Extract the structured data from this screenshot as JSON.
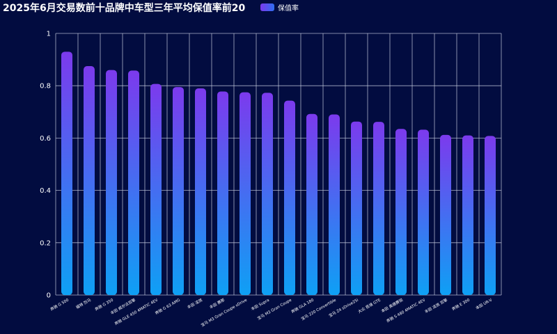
{
  "chart_data": {
    "type": "bar",
    "title": "2025年6月交易数前十品牌中车型三年平均保值率前20",
    "legend": {
      "label": "保值率",
      "position": "top-center"
    },
    "categories": [
      "奔驰 G 500",
      "福特 烈马",
      "奔驰 G 350",
      "丰田 威尔法双擎",
      "奔驰 GLE 450 4MATIC 4EV",
      "奔驰 G 63 AMG",
      "丰田 凌放",
      "丰田 赛那",
      "宝马 M3 Gran Coupe xDrive",
      "丰田 Supra",
      "宝马 M3 Gran Coupe",
      "奔驰 GLA 180",
      "宝马 220 Convertible",
      "宝马 Z4 sDrive25i",
      "大众 揽境 GTE",
      "本田 奥德赛锐",
      "奔驰 S 480 4MATIC 4EV",
      "丰田 凌放 双擎",
      "奔驰 E 300",
      "本田 UR-V"
    ],
    "series": [
      {
        "name": "保值率",
        "values": [
          0.93,
          0.875,
          0.86,
          0.858,
          0.807,
          0.795,
          0.79,
          0.778,
          0.775,
          0.773,
          0.743,
          0.692,
          0.69,
          0.663,
          0.662,
          0.635,
          0.632,
          0.612,
          0.61,
          0.608
        ]
      }
    ],
    "ylim": [
      0,
      1
    ],
    "yticks": [
      "0",
      "0.2",
      "0.4",
      "0.6",
      "0.8",
      "1"
    ],
    "grid": true,
    "colors": {
      "bar_top": "#7c3aed",
      "bar_bottom": "#0ea0f5",
      "grid": "#c8cde0",
      "background": "#020c40"
    }
  }
}
